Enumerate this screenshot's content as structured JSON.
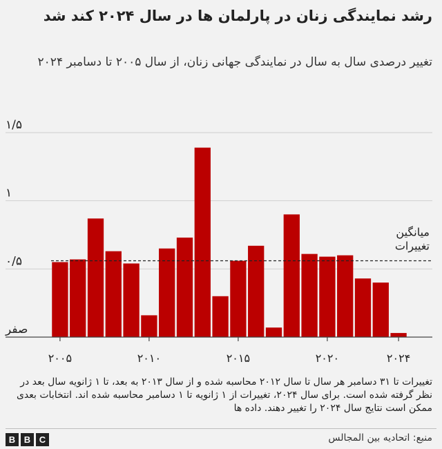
{
  "title": "رشد نمایندگی زنان در پارلمان ها در سال ۲۰۲۴ کند شد",
  "subtitle": "تغییر درصدی سال به سال در نمایندگی جهانی زنان، از سال ۲۰۰۵ تا دسامبر ۲۰۲۴",
  "footnote": "تغییرات تا ۳۱ دسامبر هر سال تا سال ۲۰۱۲ محاسبه شده و از سال ۲۰۱۳ به بعد، تا ۱ ژانویه سال بعد در نظر گرفته شده است. برای سال ۲۰۲۴، تغییرات از ۱ ژانویه تا ۱ دسامبر محاسبه شده اند. انتخابات بعدی ممکن است نتایج سال ۲۰۲۴ را تغییر دهند. داده ها",
  "source": "منبع: اتحادیه بین المجالس",
  "logo": {
    "letters": [
      "B",
      "B",
      "C"
    ]
  },
  "chart_data": {
    "type": "bar",
    "x": [
      2005,
      2006,
      2007,
      2008,
      2009,
      2010,
      2011,
      2012,
      2013,
      2014,
      2015,
      2016,
      2017,
      2018,
      2019,
      2020,
      2021,
      2022,
      2023,
      2024
    ],
    "values": [
      0.55,
      0.57,
      0.87,
      0.63,
      0.54,
      0.16,
      0.65,
      0.73,
      1.39,
      0.3,
      0.56,
      0.67,
      0.07,
      0.9,
      0.61,
      0.59,
      0.6,
      0.43,
      0.4,
      0.03
    ],
    "average": 0.56,
    "average_label": [
      "میانگین",
      "تغییرات"
    ],
    "ylim": [
      0,
      1.5
    ],
    "yticks": [
      {
        "value": 0,
        "label": "صفر"
      },
      {
        "value": 0.5,
        "label": "۰/۵"
      },
      {
        "value": 1,
        "label": "۱"
      },
      {
        "value": 1.5,
        "label": "۱/۵"
      }
    ],
    "xticks": [
      {
        "value": 2005,
        "label": "۲۰۰۵"
      },
      {
        "value": 2010,
        "label": "۲۰۱۰"
      },
      {
        "value": 2015,
        "label": "۲۰۱۵"
      },
      {
        "value": 2020,
        "label": "۲۰۲۰"
      },
      {
        "value": 2024,
        "label": "۲۰۲۴"
      }
    ],
    "bar_color": "#bb0000",
    "grid": "horizontal"
  }
}
